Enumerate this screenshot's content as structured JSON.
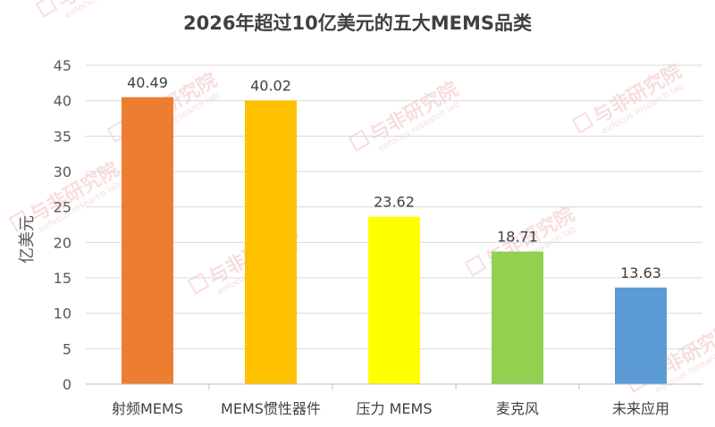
{
  "chart_data": {
    "type": "bar",
    "title": "2026年超过10亿美元的五大MEMS品类",
    "xlabel": "",
    "ylabel": "亿美元",
    "categories": [
      "射频MEMS",
      "MEMS惯性器件",
      "压力 MEMS",
      "麦克风",
      "未来应用"
    ],
    "values": [
      40.49,
      40.02,
      23.62,
      18.71,
      13.63
    ],
    "value_labels": [
      "40.49",
      "40.02",
      "23.62",
      "18.71",
      "13.63"
    ],
    "colors": [
      "#ED7D31",
      "#FFC000",
      "#FFFF00",
      "#92D050",
      "#5B9BD5"
    ],
    "ylim": [
      0,
      45
    ],
    "yticks": [
      0,
      5,
      10,
      15,
      20,
      25,
      30,
      35,
      40,
      45
    ],
    "grid": true,
    "legend": "none"
  },
  "watermark": {
    "text": "与非研究院",
    "subtext": "eefocus research lab",
    "color": "#f3c4c4"
  }
}
